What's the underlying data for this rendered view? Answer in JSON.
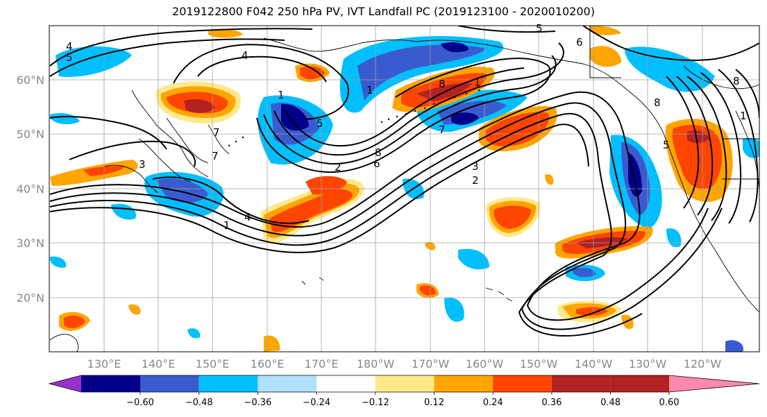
{
  "title": "2019122800 F042 250 hPa PV, IVT Landfall PC (2019123100 - 2020010200)",
  "lat_labels": [
    "60°N",
    "50°N",
    "40°N",
    "30°N",
    "20°N"
  ],
  "lon_labels": [
    "130°E",
    "140°E",
    "150°E",
    "160°E",
    "170°E",
    "180°W",
    "170°W",
    "160°W",
    "150°W",
    "140°W",
    "130°W",
    "120°W"
  ],
  "colorbar": {
    "ticks": [
      "−0.60",
      "−0.48",
      "−0.36",
      "−0.24",
      "−0.12",
      "0.12",
      "0.24",
      "0.36",
      "0.48",
      "0.60"
    ],
    "colors": [
      "#9932cc",
      "#00008b",
      "#3a5bcf",
      "#00bfff",
      "#b0e0fc",
      "#ffffff",
      "#ffe98a",
      "#ffa500",
      "#ff4500",
      "#b22222",
      "#ff88b0"
    ]
  },
  "contour_labels": [
    "4",
    "5",
    "4",
    "5",
    "6",
    "1",
    "1",
    "5",
    "8",
    "1",
    "7",
    "7",
    "8",
    "2",
    "6",
    "3",
    "2",
    "7",
    "1",
    "4",
    "3",
    "8",
    "8",
    "1",
    "5"
  ]
}
